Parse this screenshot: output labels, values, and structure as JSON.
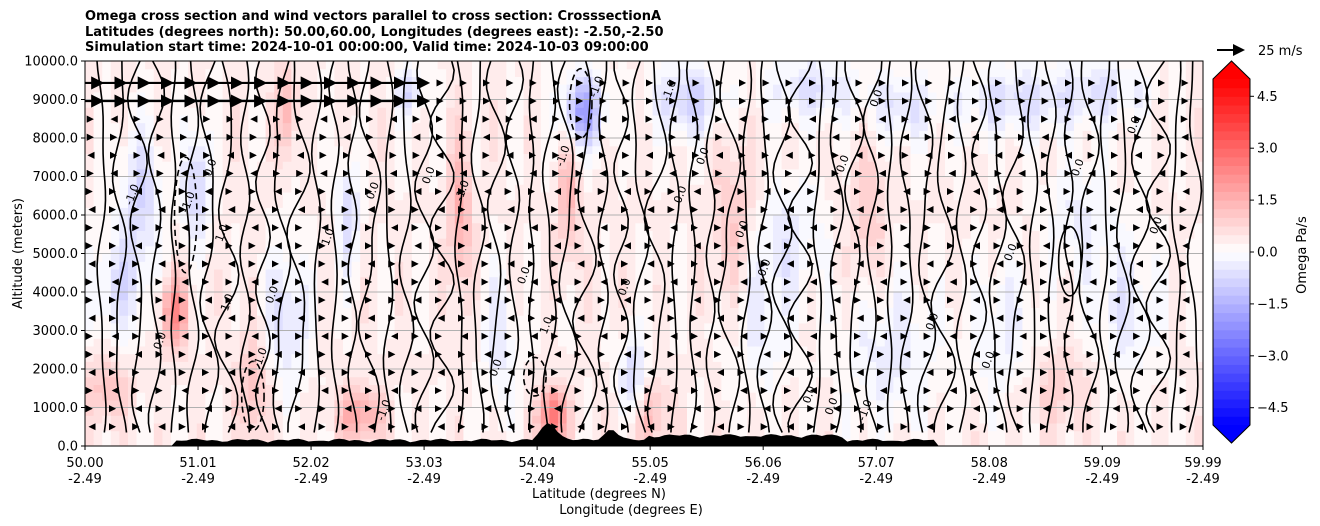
{
  "chart_data": {
    "type": "heatmap",
    "title_lines": [
      "Omega cross section and wind vectors parallel to cross section: CrosssectionA",
      "Latitudes (degrees north): 50.00,60.00, Longitudes (degrees east): -2.50,-2.50",
      "Simulation start time: 2024-10-01 00:00:00, Valid time: 2024-10-03 09:00:00"
    ],
    "ylabel": "Altitude (meters)",
    "xlabel_line1": "Latitude (degrees N)",
    "xlabel_line2": "Longitude (degrees E)",
    "ylim": [
      0,
      10000
    ],
    "y_ticks": [
      0,
      1000,
      2000,
      3000,
      4000,
      5000,
      6000,
      7000,
      8000,
      9000,
      10000
    ],
    "y_tick_labels": [
      "0.0",
      "1000.0",
      "2000.0",
      "3000.0",
      "4000.0",
      "5000.0",
      "6000.0",
      "7000.0",
      "8000.0",
      "9000.0",
      "10000.0"
    ],
    "xlim": [
      50.0,
      59.99
    ],
    "x_ticks": [
      50.0,
      51.01,
      52.02,
      53.03,
      54.04,
      55.05,
      56.06,
      57.07,
      58.08,
      59.09,
      59.99
    ],
    "x_tick_labels_lat": [
      "50.00",
      "51.01",
      "52.02",
      "53.03",
      "54.04",
      "55.05",
      "56.06",
      "57.07",
      "58.08",
      "59.09",
      "59.99"
    ],
    "x_tick_labels_lon": [
      "-2.49",
      "-2.49",
      "-2.49",
      "-2.49",
      "-2.49",
      "-2.49",
      "-2.49",
      "-2.49",
      "-2.49",
      "-2.49",
      "-2.49"
    ],
    "grid": "horizontal",
    "colorbar": {
      "label": "Omega Pa/s",
      "range": [
        -5.0,
        5.0
      ],
      "levels_step": 0.25,
      "extend": "both",
      "ticks": [
        -4.5,
        -3.0,
        -1.5,
        0.0,
        1.5,
        3.0,
        4.5
      ],
      "tick_labels": [
        "−4.5",
        "−3.0",
        "−1.5",
        "0.0",
        "1.5",
        "3.0",
        "4.5"
      ],
      "colormap": "bwr",
      "low_color": "#0000ff",
      "high_color": "#ff0000"
    },
    "quiver_key": {
      "label": "25 m/s",
      "value": 25
    },
    "contour_label_values": [
      "0.0",
      "1.0",
      "-1.0"
    ],
    "terrain_color": "#000000",
    "contour_color": "#000000"
  }
}
